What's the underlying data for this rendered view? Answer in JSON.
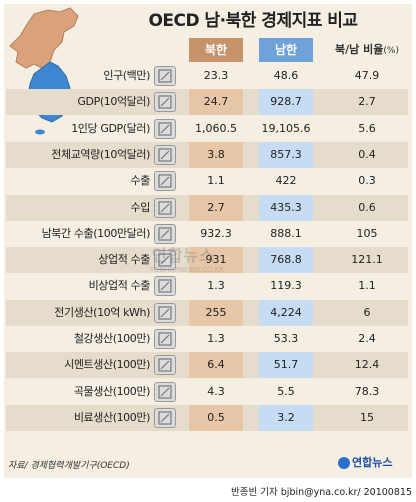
{
  "title": "OECD 남·북한 경제지표 비교",
  "headers": {
    "north": "북한",
    "south": "남한",
    "ratio": "북/남 비율",
    "ratio_unit": "(%)"
  },
  "chart_data": {
    "type": "table",
    "title": "OECD 남·북한 경제지표 비교",
    "columns": [
      "북한",
      "남한",
      "북/남 비율(%)"
    ],
    "rows": [
      {
        "label": "인구(백만)",
        "north": "23.3",
        "south": "48.6",
        "ratio": "47.9",
        "icon": "population-icon",
        "shade": false,
        "hl_north": false,
        "hl_south": false
      },
      {
        "label": "GDP(10억달러)",
        "north": "24.7",
        "south": "928.7",
        "ratio": "2.7",
        "icon": "gdp-icon",
        "shade": true,
        "hl_north": true,
        "hl_south": true
      },
      {
        "label": "1인당 GDP(달러)",
        "north": "1,060.5",
        "south": "19,105.6",
        "ratio": "5.6",
        "icon": "per-capita-gdp-icon",
        "shade": false,
        "hl_north": false,
        "hl_south": false
      },
      {
        "label": "전체교역량(10억달러)",
        "north": "3.8",
        "south": "857.3",
        "ratio": "0.4",
        "icon": "trade-volume-icon",
        "shade": true,
        "hl_north": true,
        "hl_south": true
      },
      {
        "label": "수출",
        "north": "1.1",
        "south": "422",
        "ratio": "0.3",
        "icon": "export-icon",
        "shade": false,
        "hl_north": false,
        "hl_south": false
      },
      {
        "label": "수입",
        "north": "2.7",
        "south": "435.3",
        "ratio": "0.6",
        "icon": "import-icon",
        "shade": true,
        "hl_north": true,
        "hl_south": true
      },
      {
        "label": "남북간 수출(100만달러)",
        "north": "932.3",
        "south": "888.1",
        "ratio": "105",
        "icon": "inter-korean-export-icon",
        "shade": false,
        "hl_north": false,
        "hl_south": false
      },
      {
        "label": "상업적 수출",
        "north": "931",
        "south": "768.8",
        "ratio": "121.1",
        "icon": "commercial-export-icon",
        "shade": true,
        "hl_north": true,
        "hl_south": true
      },
      {
        "label": "비상업적 수출",
        "north": "1.3",
        "south": "119.3",
        "ratio": "1.1",
        "icon": "noncommercial-export-icon",
        "shade": false,
        "hl_north": false,
        "hl_south": false
      },
      {
        "label": "전기생산(10억 kWh)",
        "north": "255",
        "south": "4,224",
        "ratio": "6",
        "icon": "electricity-icon",
        "shade": true,
        "hl_north": true,
        "hl_south": true
      },
      {
        "label": "철강생산(100만)",
        "north": "1.3",
        "south": "53.3",
        "ratio": "2.4",
        "icon": "steel-icon",
        "shade": false,
        "hl_north": false,
        "hl_south": false
      },
      {
        "label": "시멘트생산(100만)",
        "north": "6.4",
        "south": "51.7",
        "ratio": "12.4",
        "icon": "cement-icon",
        "shade": true,
        "hl_north": true,
        "hl_south": true
      },
      {
        "label": "곡물생산(100만)",
        "north": "4.3",
        "south": "5.5",
        "ratio": "78.3",
        "icon": "grain-icon",
        "shade": false,
        "hl_north": false,
        "hl_south": false
      },
      {
        "label": "비료생산(100만)",
        "north": "0.5",
        "south": "3.2",
        "ratio": "15",
        "icon": "fertilizer-icon",
        "shade": true,
        "hl_north": true,
        "hl_south": true
      }
    ]
  },
  "source": "자료/ 경제협력개발기구(OECD)",
  "logo": "연합뉴스",
  "byline": "반종빈 기자  bjbin@yna.co.kr/ 20100815",
  "watermark": "연합뉴스",
  "watermark_url": "YONHAPNEWS.CO.KR",
  "colors": {
    "north": "#c7936b",
    "south": "#6ea2d8",
    "north_map": "#d9a27a",
    "south_map": "#3f86d1",
    "background": "#f4eee3"
  }
}
